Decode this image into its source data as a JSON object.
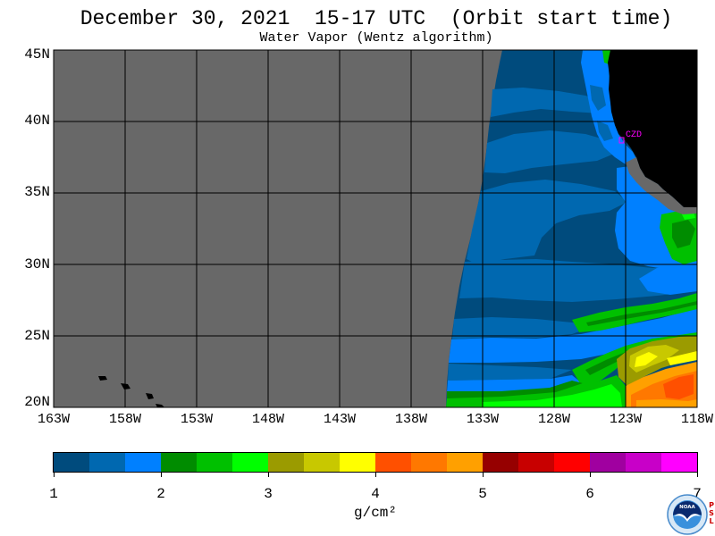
{
  "title": "December 30, 2021  15-17 UTC  (Orbit start time)",
  "subtitle": "Water Vapor (Wentz algorithm)",
  "map": {
    "lat_labels": [
      "45N",
      "40N",
      "35N",
      "30N",
      "25N",
      "20N"
    ],
    "lon_labels": [
      "163W",
      "158W",
      "153W",
      "148W",
      "143W",
      "138W",
      "133W",
      "128W",
      "123W",
      "118W"
    ],
    "station_label": "CZD",
    "station_color": "#ff00ff",
    "background_color": "#686868",
    "land_color": "#000000"
  },
  "colorbar": {
    "ticks": [
      "1",
      "2",
      "3",
      "4",
      "5",
      "6",
      "7"
    ],
    "unit": "g/cm²",
    "colors": [
      "#004b7d",
      "#0068b0",
      "#0080ff",
      "#008c00",
      "#00c000",
      "#00ff00",
      "#9b9b00",
      "#c8c800",
      "#ffff00",
      "#ff5000",
      "#ff7800",
      "#ffa000",
      "#960000",
      "#c80000",
      "#ff0000",
      "#a000a0",
      "#c800c8",
      "#ff00ff"
    ]
  },
  "logo": {
    "org": "NOAA",
    "lab_letters": [
      "P",
      "S",
      "L"
    ]
  }
}
